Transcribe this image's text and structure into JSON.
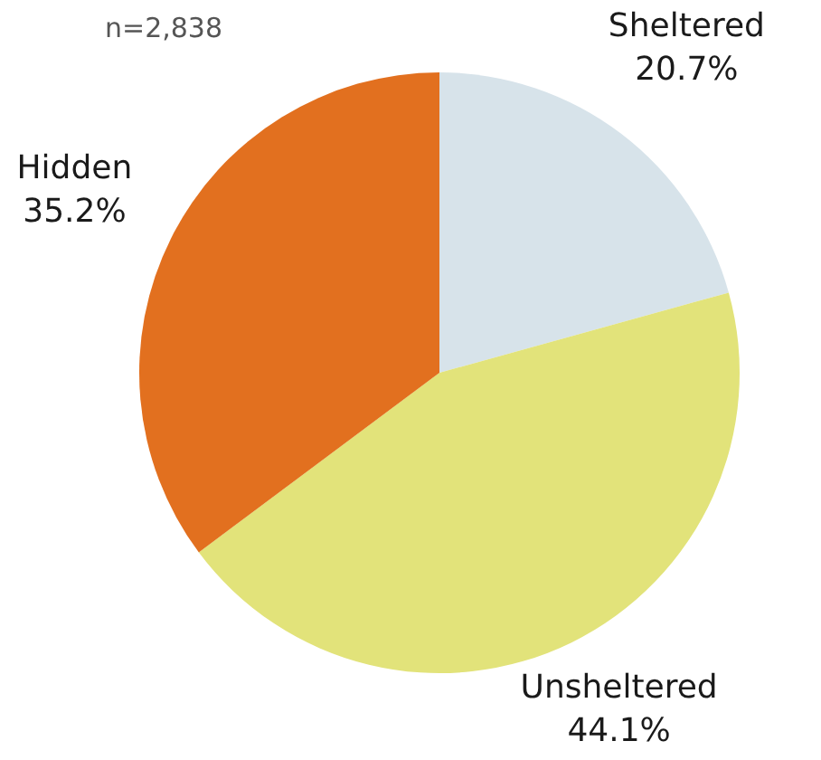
{
  "chart_data": {
    "type": "pie",
    "categories": [
      "Sheltered",
      "Unsheltered",
      "Hidden"
    ],
    "values": [
      20.7,
      44.1,
      35.2
    ],
    "colors": [
      "#d7e3ea",
      "#e2e37a",
      "#e2701f"
    ],
    "value_labels": [
      "20.7%",
      "44.1%",
      "35.2%"
    ],
    "annotations": [
      "n=2,838"
    ]
  }
}
